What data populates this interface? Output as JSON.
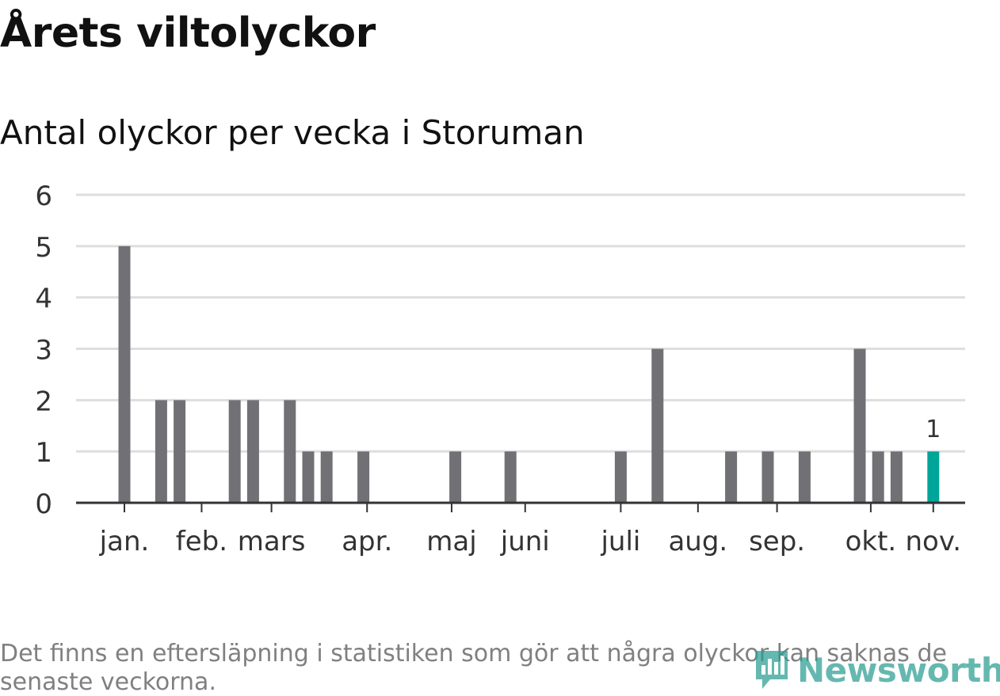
{
  "title": "Årets viltolyckor",
  "subtitle": "Antal olyckor per vecka i Storuman",
  "footnote": "Det finns en eftersläpning i statistiken som gör att några olyckor kan saknas de senaste veckorna.",
  "logo": {
    "text": "Newsworthy",
    "icon": "bar-chart-icon"
  },
  "colors": {
    "bar": "#717075",
    "highlight": "#00a59a",
    "grid": "#dedede",
    "axis": "#333333",
    "text": "#333333"
  },
  "chart_data": {
    "type": "bar",
    "title": "Antal olyckor per vecka i Storuman",
    "xlabel": "",
    "ylabel": "",
    "ylim": [
      0,
      6
    ],
    "yticks": [
      0,
      1,
      2,
      3,
      4,
      5,
      6
    ],
    "week_start": 1,
    "weeks": [
      1,
      2,
      3,
      4,
      5,
      6,
      7,
      8,
      9,
      10,
      11,
      12,
      13,
      14,
      15,
      16,
      17,
      18,
      19,
      20,
      21,
      22,
      23,
      24,
      25,
      26,
      27,
      28,
      29,
      30,
      31,
      32,
      33,
      34,
      35,
      36,
      37,
      38,
      39,
      40,
      41,
      42,
      43,
      44,
      45
    ],
    "values": [
      5,
      0,
      2,
      2,
      0,
      0,
      2,
      2,
      0,
      2,
      1,
      1,
      0,
      1,
      0,
      0,
      0,
      0,
      1,
      0,
      0,
      1,
      0,
      0,
      0,
      0,
      0,
      1,
      0,
      3,
      0,
      0,
      0,
      1,
      0,
      1,
      0,
      1,
      0,
      0,
      3,
      1,
      1,
      0,
      1
    ],
    "highlight_index": 44,
    "highlight_label": "1",
    "month_labels": [
      {
        "label": "jan.",
        "week": 1
      },
      {
        "label": "feb.",
        "week": 5.2
      },
      {
        "label": "mars",
        "week": 9.0
      },
      {
        "label": "apr.",
        "week": 14.2
      },
      {
        "label": "maj",
        "week": 18.8
      },
      {
        "label": "juni",
        "week": 22.8
      },
      {
        "label": "juli",
        "week": 28.0
      },
      {
        "label": "aug.",
        "week": 32.2
      },
      {
        "label": "sep.",
        "week": 36.5
      },
      {
        "label": "okt.",
        "week": 41.6
      },
      {
        "label": "nov.",
        "week": 45.0
      }
    ]
  }
}
